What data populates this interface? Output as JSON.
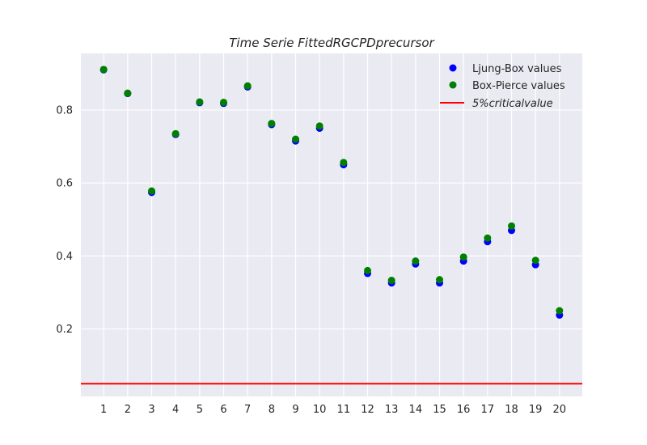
{
  "chart_data": {
    "type": "scatter",
    "title": "Time Serie FittedRGCPDprecursor",
    "xlabel": "",
    "ylabel": "",
    "x": [
      1,
      2,
      3,
      4,
      5,
      6,
      7,
      8,
      9,
      10,
      11,
      12,
      13,
      14,
      15,
      16,
      17,
      18,
      19,
      20
    ],
    "xlim": [
      0.05,
      20.95
    ],
    "ylim": [
      0.015,
      0.955
    ],
    "xticks": [
      "1",
      "2",
      "3",
      "4",
      "5",
      "6",
      "7",
      "8",
      "9",
      "10",
      "11",
      "12",
      "13",
      "14",
      "15",
      "16",
      "17",
      "18",
      "19",
      "20"
    ],
    "yticks": [
      0.2,
      0.4,
      0.6,
      0.8
    ],
    "ytick_labels": [
      "0.2",
      "0.4",
      "0.6",
      "0.8"
    ],
    "grid": true,
    "legend_position": "top-right",
    "series": [
      {
        "name": "Ljung-Box values",
        "color": "#0000ff",
        "values": [
          0.91,
          0.845,
          0.574,
          0.733,
          0.82,
          0.818,
          0.863,
          0.76,
          0.715,
          0.75,
          0.65,
          0.352,
          0.326,
          0.378,
          0.326,
          0.386,
          0.439,
          0.47,
          0.376,
          0.238
        ]
      },
      {
        "name": "Box-Pierce values",
        "color": "#008000",
        "values": [
          0.911,
          0.846,
          0.578,
          0.735,
          0.822,
          0.821,
          0.866,
          0.763,
          0.72,
          0.756,
          0.656,
          0.36,
          0.333,
          0.386,
          0.335,
          0.397,
          0.449,
          0.482,
          0.388,
          0.25
        ]
      }
    ],
    "reference_line": {
      "name": "5%criticalvalue",
      "color": "#ff0000",
      "y": 0.05
    }
  }
}
